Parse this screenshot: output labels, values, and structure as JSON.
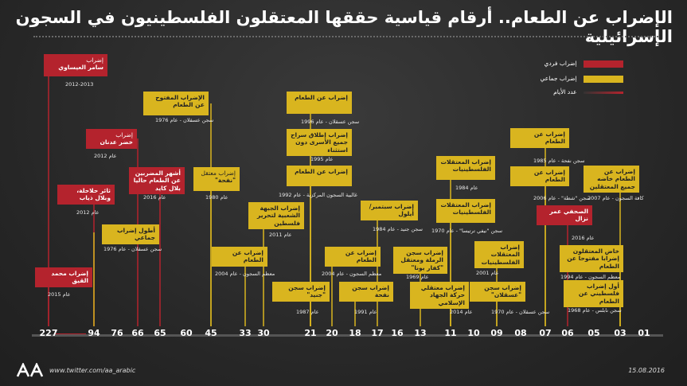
{
  "title": "الإضراب عن الطعام.. أرقام قياسية حققها المعتقلون الفلسطينيون في السجون الإسرائيلية",
  "legend": [
    {
      "label": "إضراب فردي",
      "color": "#b4232d"
    },
    {
      "label": "إضراب جماعي",
      "color": "#d9b51f"
    },
    {
      "label": "عدد الأيام",
      "color": "#b4232d"
    }
  ],
  "footer": {
    "url": "www.twitter.com/aa_arabic",
    "date": "15.08.2016"
  },
  "chart_data": {
    "type": "timeline",
    "axis_ticks": [
      "227",
      "94",
      "76",
      "66",
      "65",
      "60",
      "45",
      "33",
      "30",
      "21",
      "20",
      "18",
      "17",
      "16",
      "13",
      "11",
      "10",
      "09",
      "08",
      "07",
      "06",
      "05",
      "03",
      "01"
    ],
    "events": [
      {
        "days": "227",
        "kind": "individual",
        "label_prefix": "إضراب",
        "label": "سامر العيساوي",
        "sub": "2012-2013"
      },
      {
        "days": "227",
        "kind": "individual",
        "label_prefix": "",
        "label": "إضراب محمد القيق",
        "sub": "عام 2015"
      },
      {
        "days": "94",
        "kind": "individual",
        "label_prefix": "",
        "label": "ثائر حلاحلة، وبلال ذياب",
        "sub": "عام 2012"
      },
      {
        "days": "94",
        "kind": "collective",
        "label_prefix": "",
        "label": "أطول إضراب جماعي",
        "sub": "سجن عسقلان - عام 1976"
      },
      {
        "days": "66",
        "kind": "individual",
        "label_prefix": "إضراب",
        "label": "خضر عدنان",
        "sub": "عام 2012"
      },
      {
        "days": "65",
        "kind": "individual",
        "label_prefix": "",
        "label": "أشهر المضربين عن الطعام حاليا بلال كايد",
        "sub": "عام 2016"
      },
      {
        "days": "45",
        "kind": "collective",
        "label_prefix": "",
        "label": "الإضراب المفتوح عن الطعام",
        "sub": "سجن عسقلان - عام 1976"
      },
      {
        "days": "45",
        "kind": "collective",
        "label_prefix": "إضراب معتقل",
        "label": "\"نفحة\"",
        "sub": "عام 1980"
      },
      {
        "days": "33",
        "kind": "collective",
        "label_prefix": "",
        "label": "إضراب عن الطعام",
        "sub": "معظم السجون - عام 2004"
      },
      {
        "days": "30",
        "kind": "collective",
        "label_prefix": "",
        "label": "إضراب الجبهة الشعبية لتحرير فلسطين",
        "sub": "عام 2011"
      },
      {
        "days": "21",
        "kind": "collective",
        "label_prefix": "",
        "label": "إضراب عن الطعام",
        "sub": "سجن عسقلان - عام 1996"
      },
      {
        "days": "21",
        "kind": "collective",
        "label_prefix": "",
        "label": "إضراب إطلاق سراح جميع الأسرى دون استثناء",
        "sub": "عام 1995"
      },
      {
        "days": "21",
        "kind": "collective",
        "label_prefix": "",
        "label": "إضراب عن الطعام",
        "sub": "غالبية السجون المركزية - عام 1992"
      },
      {
        "days": "21",
        "kind": "collective",
        "label_prefix": "",
        "label": "إضراب سجن \"جنيد\"",
        "sub": "عام 1987"
      },
      {
        "days": "20",
        "kind": "collective",
        "label_prefix": "",
        "label": "إضراب عن الطعام",
        "sub": "معظم السجون - عام 2004"
      },
      {
        "days": "18",
        "kind": "collective",
        "label_prefix": "",
        "label": "إضراب سجن نفحة",
        "sub": "عام 1991"
      },
      {
        "days": "17",
        "kind": "collective",
        "label_prefix": "",
        "label": "إضراب سبتمبر/أيلول",
        "sub": "سجن جنيد - عام 1984"
      },
      {
        "days": "13",
        "kind": "collective",
        "label_prefix": "",
        "label": "إضراب سجن الرملة ومعتقل \"كفار يونا\"",
        "sub": "عام 1969"
      },
      {
        "days": "11",
        "kind": "collective",
        "label_prefix": "",
        "label": "إضراب المعتقلات الفلسطينيات",
        "sub": "عام 1984"
      },
      {
        "days": "11",
        "kind": "collective",
        "label_prefix": "",
        "label": "إضراب المعتقلات الفلسطينيات",
        "sub": "سجن \"نيفي ترتيسا\" - عام 1970"
      },
      {
        "days": "11",
        "kind": "collective",
        "label_prefix": "",
        "label": "إضراب معتقلي حركة الجهاد الإسلامي",
        "sub": "عام 2014"
      },
      {
        "days": "09",
        "kind": "collective",
        "label_prefix": "",
        "label": "إضراب المعتقلات الفلسطينيات",
        "sub": "عام 2001"
      },
      {
        "days": "09",
        "kind": "collective",
        "label_prefix": "",
        "label": "إضراب سجن \"عسقلان\"",
        "sub": "سجن عسقلان - عام 1970"
      },
      {
        "days": "07",
        "kind": "collective",
        "label_prefix": "",
        "label": "إضراب عن الطعام",
        "sub": "سجن نفحة - عام 1985"
      },
      {
        "days": "07",
        "kind": "collective",
        "label_prefix": "",
        "label": "إضراب عن الطعام",
        "sub": "سجن \"شطة\" - عام 2006"
      },
      {
        "days": "07",
        "kind": "individual",
        "label_prefix": "",
        "label": "الصحفي عمر نزال",
        "sub": "عام 2016"
      },
      {
        "days": "03",
        "kind": "collective",
        "label_prefix": "",
        "label": "إضراب عن الطعام خاضه جميع المعتقلين",
        "sub": "كافة السجون - عام 2007"
      },
      {
        "days": "03",
        "kind": "collective",
        "label_prefix": "",
        "label": "خاض المعتقلون إضرابا مفتوحا عن الطعام",
        "sub": "معظم السجون - عام 1994"
      },
      {
        "days": "03",
        "kind": "collective",
        "label_prefix": "",
        "label": "أول إضراب فلسطيني عن الطعام",
        "sub": "سجن نابلس - عام 1968"
      }
    ]
  }
}
